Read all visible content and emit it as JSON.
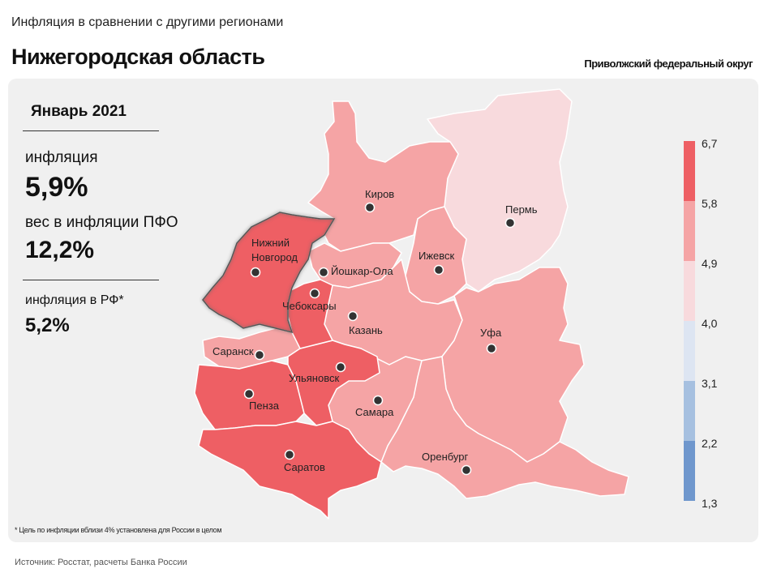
{
  "header": {
    "subtitle": "Инфляция в сравнении с другими регионами",
    "title": "Нижегородская область",
    "district": "Приволжский федеральный округ"
  },
  "stats": {
    "period": "Январь 2021",
    "inflation_label": "инфляция",
    "inflation_value": "5,9%",
    "weight_label": "вес в инфляции  ПФО",
    "weight_value": "12,2%",
    "rf_label": "инфляция  в РФ*",
    "rf_value": "5,2%"
  },
  "legend": {
    "ticks": [
      "6,7",
      "5,8",
      "4,9",
      "4,0",
      "3,1",
      "2,2",
      "1,3"
    ],
    "colors": [
      "#ee5f64",
      "#f5a4a5",
      "#f8dadd",
      "#dde5f2",
      "#a6c0e0",
      "#6f97cd"
    ]
  },
  "cities": [
    {
      "name": "Киров",
      "region": "kirov",
      "tier": 2
    },
    {
      "name": "Пермь",
      "region": "perm",
      "tier": 3
    },
    {
      "name": "Нижний Новгород",
      "region": "nn",
      "tier": 1,
      "highlight": true
    },
    {
      "name": "Йошкар-Ола",
      "region": "mariel",
      "tier": 2
    },
    {
      "name": "Ижевск",
      "region": "udm",
      "tier": 2
    },
    {
      "name": "Чебоксары",
      "region": "chuv",
      "tier": 1
    },
    {
      "name": "Казань",
      "region": "tat",
      "tier": 2
    },
    {
      "name": "Уфа",
      "region": "bash",
      "tier": 2
    },
    {
      "name": "Саранск",
      "region": "mord",
      "tier": 2
    },
    {
      "name": "Ульяновск",
      "region": "uly",
      "tier": 1
    },
    {
      "name": "Пенза",
      "region": "penza",
      "tier": 1
    },
    {
      "name": "Самара",
      "region": "samara",
      "tier": 2
    },
    {
      "name": "Оренбург",
      "region": "oren",
      "tier": 2
    },
    {
      "name": "Саратов",
      "region": "sar",
      "tier": 1
    }
  ],
  "footnote": "* Цель по инфляции вблизи 4% установлена для России в целом",
  "source": "Источник: Росстат, расчеты Банка России"
}
